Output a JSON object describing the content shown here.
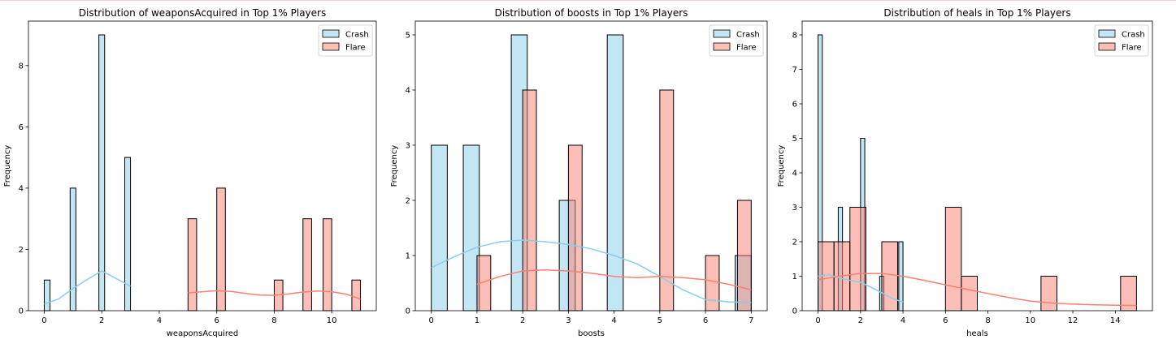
{
  "chart_data": [
    {
      "type": "bar",
      "title": "Distribution of weaponsAcquired in Top 1% Players",
      "xlabel": "weaponsAcquired",
      "ylabel": "Frequency",
      "xlim": [
        -0.55,
        11.55
      ],
      "ylim": [
        0,
        9.45
      ],
      "xticks": [
        0,
        2,
        4,
        6,
        8,
        10
      ],
      "yticks": [
        0,
        2,
        4,
        6,
        8
      ],
      "legend_position": "top-right",
      "series": [
        {
          "name": "Crash",
          "color": "#87CEEB",
          "bins": [
            {
              "x0": 0.0,
              "x1": 0.2,
              "count": 1
            },
            {
              "x0": 0.9,
              "x1": 1.1,
              "count": 4
            },
            {
              "x0": 1.9,
              "x1": 2.1,
              "count": 9
            },
            {
              "x0": 2.8,
              "x1": 3.0,
              "count": 5
            }
          ],
          "kde": {
            "x": [
              0,
              0.5,
              1,
              1.5,
              2,
              2.5,
              3
            ],
            "y": [
              0.22,
              0.38,
              0.72,
              1.02,
              1.3,
              1.05,
              0.8
            ]
          }
        },
        {
          "name": "Flare",
          "color": "#FA8072",
          "bins": [
            {
              "x0": 5.0,
              "x1": 5.3,
              "count": 3
            },
            {
              "x0": 6.0,
              "x1": 6.3,
              "count": 4
            },
            {
              "x0": 8.0,
              "x1": 8.3,
              "count": 1
            },
            {
              "x0": 9.0,
              "x1": 9.3,
              "count": 3
            },
            {
              "x0": 9.7,
              "x1": 10.0,
              "count": 3
            },
            {
              "x0": 10.7,
              "x1": 11.0,
              "count": 1
            }
          ],
          "kde": {
            "x": [
              5,
              5.5,
              6,
              6.5,
              7,
              7.5,
              8,
              8.5,
              9,
              9.5,
              10,
              10.5,
              11
            ],
            "y": [
              0.58,
              0.62,
              0.65,
              0.63,
              0.56,
              0.51,
              0.5,
              0.55,
              0.61,
              0.64,
              0.62,
              0.54,
              0.38
            ]
          }
        }
      ]
    },
    {
      "type": "bar",
      "title": "Distribution of boosts in Top 1% Players",
      "xlabel": "boosts",
      "ylabel": "Frequency",
      "xlim": [
        -0.35,
        7.35
      ],
      "ylim": [
        0,
        5.25
      ],
      "xticks": [
        0,
        1,
        2,
        3,
        4,
        5,
        6,
        7
      ],
      "yticks": [
        0,
        1,
        2,
        3,
        4,
        5
      ],
      "legend_position": "top-right",
      "series": [
        {
          "name": "Crash",
          "color": "#87CEEB",
          "bins": [
            {
              "x0": 0.0,
              "x1": 0.35,
              "count": 3
            },
            {
              "x0": 0.7,
              "x1": 1.05,
              "count": 3
            },
            {
              "x0": 1.75,
              "x1": 2.1,
              "count": 5
            },
            {
              "x0": 2.8,
              "x1": 3.15,
              "count": 2
            },
            {
              "x0": 3.85,
              "x1": 4.2,
              "count": 5
            },
            {
              "x0": 6.65,
              "x1": 7.0,
              "count": 1
            }
          ],
          "kde": {
            "x": [
              0,
              0.5,
              1,
              1.5,
              2,
              2.5,
              3,
              3.5,
              4,
              4.5,
              5,
              5.5,
              6,
              6.5,
              7
            ],
            "y": [
              0.78,
              0.98,
              1.15,
              1.25,
              1.28,
              1.25,
              1.2,
              1.12,
              1.0,
              0.85,
              0.62,
              0.38,
              0.2,
              0.16,
              0.15
            ]
          }
        },
        {
          "name": "Flare",
          "color": "#FA8072",
          "bins": [
            {
              "x0": 1.0,
              "x1": 1.3,
              "count": 1
            },
            {
              "x0": 2.0,
              "x1": 2.3,
              "count": 4
            },
            {
              "x0": 3.0,
              "x1": 3.3,
              "count": 3
            },
            {
              "x0": 5.0,
              "x1": 5.3,
              "count": 4
            },
            {
              "x0": 6.0,
              "x1": 6.3,
              "count": 1
            },
            {
              "x0": 6.7,
              "x1": 7.0,
              "count": 2
            }
          ],
          "kde": {
            "x": [
              1,
              1.5,
              2,
              2.5,
              3,
              3.5,
              4,
              4.5,
              5,
              5.5,
              6,
              6.5,
              7
            ],
            "y": [
              0.48,
              0.62,
              0.72,
              0.74,
              0.72,
              0.68,
              0.62,
              0.6,
              0.62,
              0.6,
              0.56,
              0.48,
              0.38
            ]
          }
        }
      ]
    },
    {
      "type": "bar",
      "title": "Distribution of heals in Top 1% Players",
      "xlabel": "heals",
      "ylabel": "Frequency",
      "xlim": [
        -0.75,
        15.75
      ],
      "ylim": [
        0,
        8.4
      ],
      "xticks": [
        0,
        2,
        4,
        6,
        8,
        10,
        12,
        14
      ],
      "yticks": [
        0,
        1,
        2,
        3,
        4,
        5,
        6,
        7,
        8
      ],
      "legend_position": "top-right",
      "series": [
        {
          "name": "Crash",
          "color": "#87CEEB",
          "bins": [
            {
              "x0": 0.0,
              "x1": 0.2,
              "count": 8
            },
            {
              "x0": 0.95,
              "x1": 1.15,
              "count": 3
            },
            {
              "x0": 2.0,
              "x1": 2.2,
              "count": 5
            },
            {
              "x0": 2.9,
              "x1": 3.1,
              "count": 1
            },
            {
              "x0": 3.8,
              "x1": 4.0,
              "count": 2
            }
          ],
          "kde": {
            "x": [
              0,
              0.5,
              1,
              1.5,
              2,
              2.5,
              3,
              3.5,
              4
            ],
            "y": [
              1.0,
              1.05,
              0.95,
              0.88,
              0.82,
              0.68,
              0.52,
              0.35,
              0.25
            ]
          }
        },
        {
          "name": "Flare",
          "color": "#FA8072",
          "bins": [
            {
              "x0": 0.0,
              "x1": 0.75,
              "count": 2
            },
            {
              "x0": 0.75,
              "x1": 1.5,
              "count": 2
            },
            {
              "x0": 1.5,
              "x1": 2.25,
              "count": 3
            },
            {
              "x0": 3.0,
              "x1": 3.75,
              "count": 2
            },
            {
              "x0": 6.0,
              "x1": 6.75,
              "count": 3
            },
            {
              "x0": 6.75,
              "x1": 7.5,
              "count": 1
            },
            {
              "x0": 10.5,
              "x1": 11.25,
              "count": 1
            },
            {
              "x0": 14.25,
              "x1": 15.0,
              "count": 1
            }
          ],
          "kde": {
            "x": [
              0,
              1,
              2,
              3,
              4,
              5,
              6,
              7,
              8,
              9,
              10,
              11,
              12,
              13,
              14,
              15
            ],
            "y": [
              0.9,
              1.0,
              1.08,
              1.08,
              1.0,
              0.88,
              0.75,
              0.62,
              0.5,
              0.38,
              0.28,
              0.22,
              0.19,
              0.17,
              0.16,
              0.15
            ]
          }
        }
      ]
    }
  ]
}
